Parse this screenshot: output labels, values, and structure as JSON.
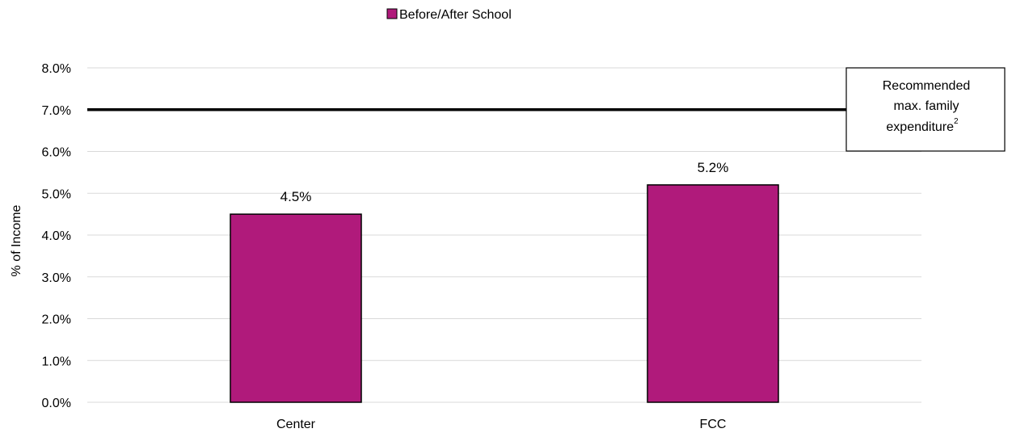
{
  "chart_data": {
    "type": "bar",
    "categories": [
      "Center",
      "FCC"
    ],
    "series": [
      {
        "name": "Before/After School",
        "values": [
          4.5,
          5.2
        ],
        "color": "#B01A7B"
      }
    ],
    "data_labels": [
      "4.5%",
      "5.2%"
    ],
    "ylabel": "% of Income",
    "xlabel": "",
    "ylim": [
      0,
      8
    ],
    "y_ticks": [
      "0.0%",
      "1.0%",
      "2.0%",
      "3.0%",
      "4.0%",
      "5.0%",
      "6.0%",
      "7.0%",
      "8.0%"
    ],
    "grid": true,
    "legend_position": "top-center",
    "reference_line": {
      "value": 7.0,
      "color": "#000000"
    },
    "annotation": {
      "lines": [
        "Recommended",
        "max. family",
        "expenditure"
      ],
      "superscript": "2"
    }
  }
}
